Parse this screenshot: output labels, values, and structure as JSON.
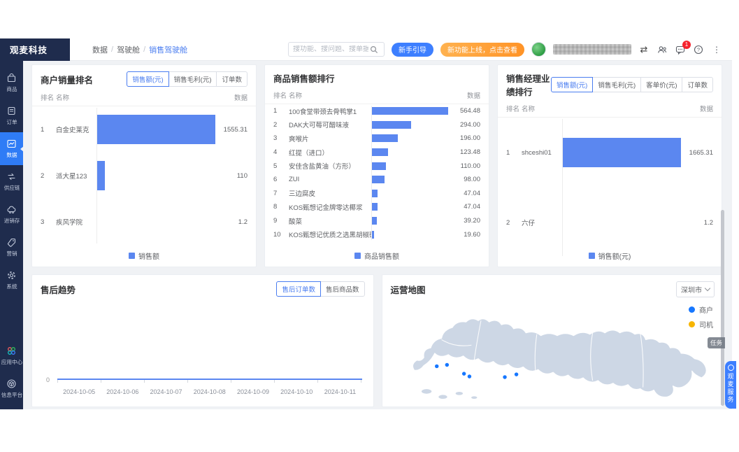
{
  "brand": {
    "name": "观麦科技"
  },
  "breadcrumb": {
    "items": [
      "数据",
      "驾驶舱",
      "销售驾驶舱"
    ]
  },
  "topbar": {
    "search_placeholder": "搜功能、搜问题、搜单据",
    "guide_button": "新手引导",
    "promo_button": "新功能上线，点击查看",
    "message_badge": "1"
  },
  "sidebar": {
    "items": [
      {
        "label": "商品"
      },
      {
        "label": "订单"
      },
      {
        "label": "数据"
      },
      {
        "label": "供应链"
      },
      {
        "label": "进销存"
      },
      {
        "label": "营销"
      },
      {
        "label": "系统"
      }
    ],
    "bottom_items": [
      {
        "label": "应用中心"
      },
      {
        "label": "信息平台"
      }
    ]
  },
  "panels": {
    "merchant": {
      "title": "商户销量排名",
      "tabs": [
        {
          "label": "销售额(元)"
        },
        {
          "label": "销售毛利(元)"
        },
        {
          "label": "订单数"
        }
      ],
      "columns": {
        "rank": "排名",
        "name": "名称",
        "value": "数据"
      },
      "rows": [
        {
          "rank": "1",
          "name": "白金史莱克",
          "value": "1555.31",
          "pct": 100
        },
        {
          "rank": "2",
          "name": "派大星123",
          "value": "110",
          "pct": 7.1
        },
        {
          "rank": "3",
          "name": "疾风学院",
          "value": "1.2",
          "pct": 0.1
        }
      ],
      "legend": "销售额"
    },
    "product": {
      "title": "商品销售额排行",
      "columns": {
        "rank": "排名",
        "name": "名称",
        "value": "数据"
      },
      "rows": [
        {
          "rank": "1",
          "name": "100食堂带颈去骨鸭掌1",
          "value": "564.48",
          "pct": 100
        },
        {
          "rank": "2",
          "name": "DAK大可莓可醋味液",
          "value": "294.00",
          "pct": 52.1
        },
        {
          "rank": "3",
          "name": "爽喉片",
          "value": "196.00",
          "pct": 34.7
        },
        {
          "rank": "4",
          "name": "红提（进口）",
          "value": "123.48",
          "pct": 21.9
        },
        {
          "rank": "5",
          "name": "安佳含盐黄油（方形）",
          "value": "110.00",
          "pct": 19.5
        },
        {
          "rank": "6",
          "name": "ZUI",
          "value": "98.00",
          "pct": 17.4
        },
        {
          "rank": "7",
          "name": "三边腐皮",
          "value": "47.04",
          "pct": 8.3
        },
        {
          "rank": "8",
          "name": "KOS甄想记金牌零达椰浆",
          "value": "47.04",
          "pct": 8.3
        },
        {
          "rank": "9",
          "name": "酸菜",
          "value": "39.20",
          "pct": 6.9
        },
        {
          "rank": "10",
          "name": "KOS甄想记优质之选黑胡椒碎",
          "value": "19.60",
          "pct": 3.5
        }
      ],
      "legend": "商品销售额"
    },
    "manager": {
      "title": "销售经理业绩排行",
      "tabs": [
        {
          "label": "销售额(元)"
        },
        {
          "label": "销售毛利(元)"
        },
        {
          "label": "客单价(元)"
        },
        {
          "label": "订单数"
        }
      ],
      "columns": {
        "rank": "排名",
        "name": "名称",
        "value": "数据"
      },
      "rows": [
        {
          "rank": "1",
          "name": "shceshi01",
          "value": "1665.31",
          "pct": 100
        },
        {
          "rank": "2",
          "name": "六仔",
          "value": "1.2",
          "pct": 0.1
        }
      ],
      "legend": "销售额(元)"
    },
    "aftersale": {
      "title": "售后趋势",
      "tabs": [
        {
          "label": "售后订单数"
        },
        {
          "label": "售后商品数"
        }
      ],
      "y_zero": "0",
      "dates": [
        "2024-10-05",
        "2024-10-06",
        "2024-10-07",
        "2024-10-08",
        "2024-10-09",
        "2024-10-10",
        "2024-10-11"
      ],
      "values": [
        0,
        0,
        0,
        0,
        0,
        0,
        0
      ]
    },
    "map": {
      "title": "运营地图",
      "city": "深圳市",
      "legend": [
        {
          "label": "商户",
          "color": "#1677ff"
        },
        {
          "label": "司机",
          "color": "#f7b500"
        }
      ]
    }
  },
  "floating": {
    "task_tab": "任务",
    "service_tab": "观麦服务"
  },
  "colors": {
    "accent": "#4a7df0",
    "bar": "#5b87f0",
    "sidebar": "#1f2c4d",
    "sidebar_active": "#2f7cf6",
    "promo_orange": "#ff9326",
    "badge_red": "#f5222d",
    "map_fill": "#cdd7e5",
    "merchant_dot": "#1677ff",
    "driver_dot": "#f7b500"
  }
}
